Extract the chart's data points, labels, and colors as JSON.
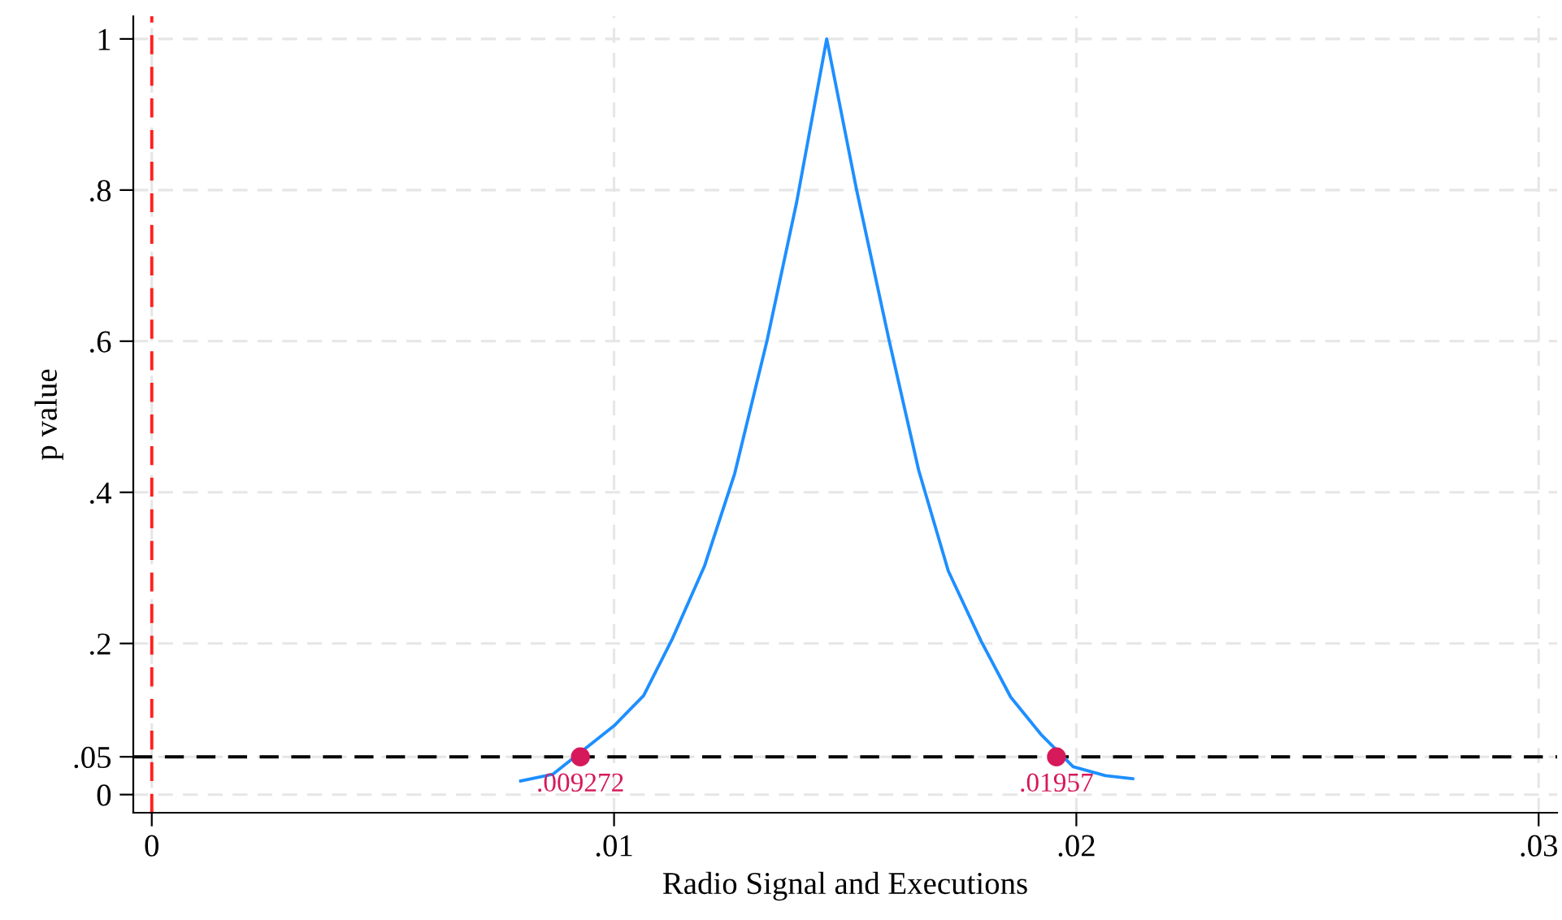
{
  "chart_data": {
    "type": "line",
    "xlabel": "Radio Signal and Executions",
    "ylabel": "p value",
    "series": [
      {
        "color": "#1e8fff",
        "x": [
          0.00798,
          0.00868,
          0.01,
          0.01064,
          0.01126,
          0.01196,
          0.01261,
          0.01331,
          0.01395,
          0.0146,
          0.01524,
          0.01595,
          0.01659,
          0.01723,
          0.01794,
          0.01858,
          0.01923,
          0.01993,
          0.02063,
          0.02122
        ],
        "values": [
          0.018,
          0.027,
          0.091,
          0.131,
          0.206,
          0.303,
          0.425,
          0.601,
          0.784,
          1.0,
          0.802,
          0.601,
          0.429,
          0.296,
          0.203,
          0.129,
          0.08,
          0.037,
          0.025,
          0.021
        ]
      },
      {
        "type": "scatter",
        "color": "#d6195a",
        "marker": "circle",
        "x": [
          0.009272,
          0.01957
        ],
        "values": [
          0.05,
          0.05
        ]
      }
    ],
    "annotations": [
      {
        "text": ".009272",
        "x": 0.009272,
        "y": 0.05
      },
      {
        "text": ".01957",
        "x": 0.01957,
        "y": 0.05
      }
    ],
    "ref_lines": [
      {
        "axis": "x",
        "value": 0,
        "color": "#ff2020",
        "line_style": "dashed"
      },
      {
        "axis": "y",
        "value": 0.05,
        "color": "#000000",
        "line_style": "dashed"
      }
    ],
    "xlim": [
      -0.0004,
      0.0304
    ],
    "ylim": [
      -0.024,
      1.03
    ],
    "xticks": [
      0,
      {
        "value": 0.01,
        "label": ".01"
      },
      {
        "value": 0.02,
        "label": ".02"
      },
      {
        "value": 0.03,
        "label": ".03"
      }
    ],
    "yticks": [
      0,
      {
        "value": 0.05,
        "label": ".05"
      },
      {
        "value": 0.2,
        "label": ".2"
      },
      {
        "value": 0.4,
        "label": ".4"
      },
      {
        "value": 0.6,
        "label": ".6"
      },
      {
        "value": 0.8,
        "label": ".8"
      },
      1
    ],
    "grid": true,
    "legend": false
  }
}
